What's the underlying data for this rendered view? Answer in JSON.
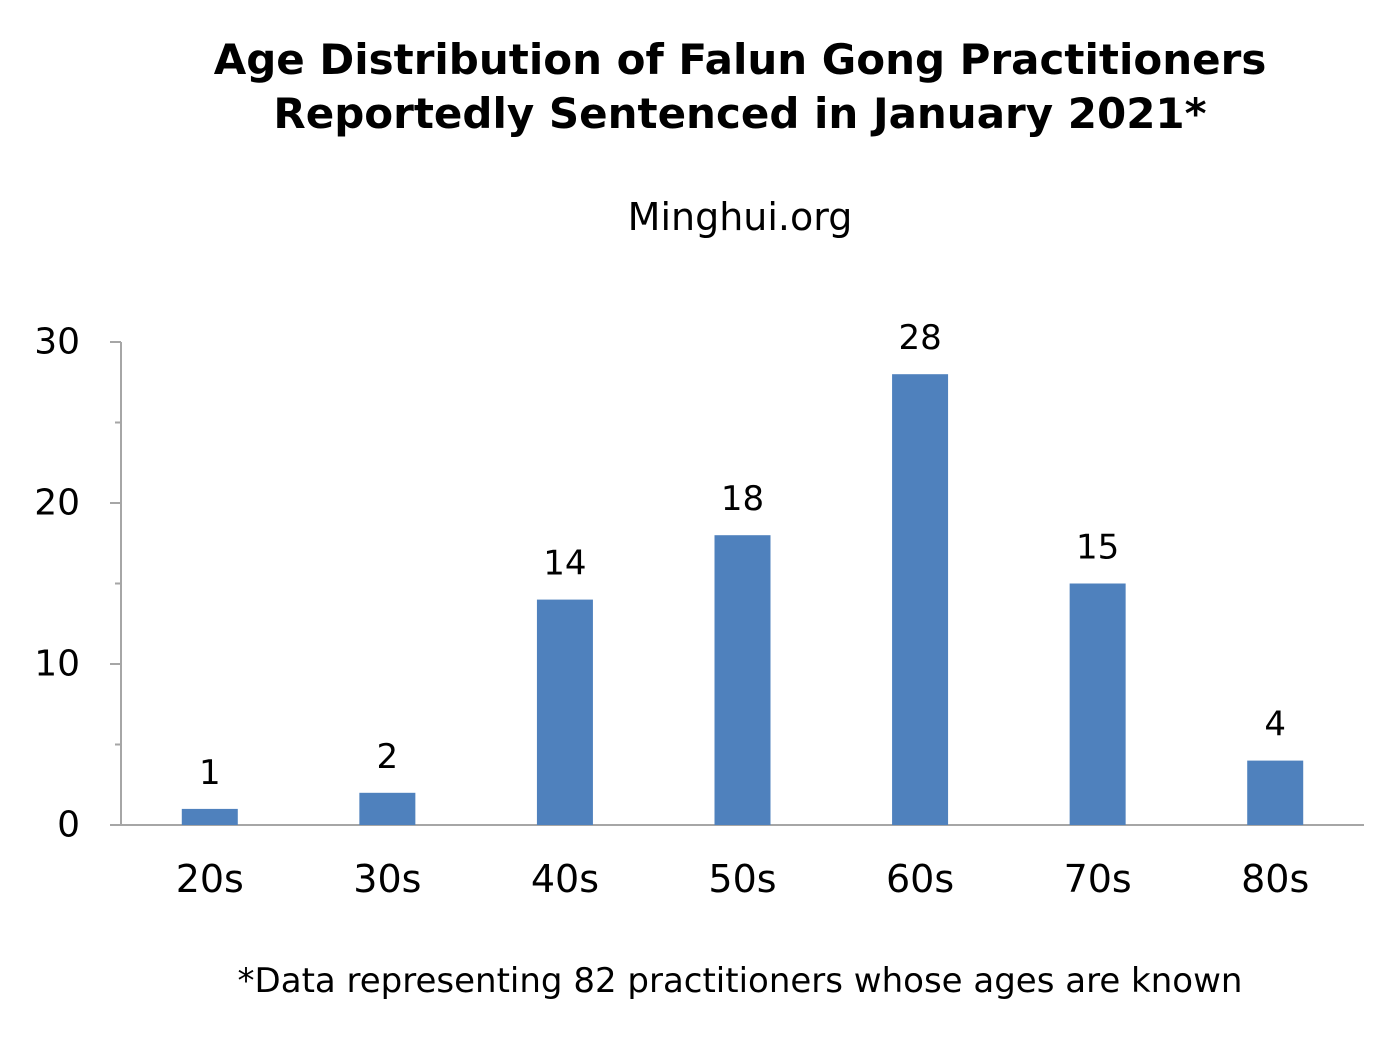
{
  "chart_data": {
    "type": "bar",
    "title_lines": [
      "Age Distribution of Falun Gong Practitioners",
      "Reportedly Sentenced in January 2021*"
    ],
    "subtitle": "Minghui.org",
    "footnote": "*Data representing 82 practitioners whose ages are known",
    "categories": [
      "20s",
      "30s",
      "40s",
      "50s",
      "60s",
      "70s",
      "80s"
    ],
    "values": [
      1,
      2,
      14,
      18,
      28,
      15,
      4
    ],
    "data_labels": [
      "1",
      "2",
      "14",
      "18",
      "28",
      "15",
      "4"
    ],
    "xlabel": "",
    "ylabel": "",
    "ylim": [
      0,
      30
    ],
    "yticks": [
      0,
      10,
      20,
      30
    ],
    "yticks_minor": [
      5,
      15,
      25
    ],
    "ytick_labels": [
      "0",
      "10",
      "20",
      "30"
    ],
    "grid": false,
    "legend": "none",
    "colors": {
      "bar": "#4F81BD",
      "axis": "#A6A6A6",
      "text": "#000000"
    }
  }
}
